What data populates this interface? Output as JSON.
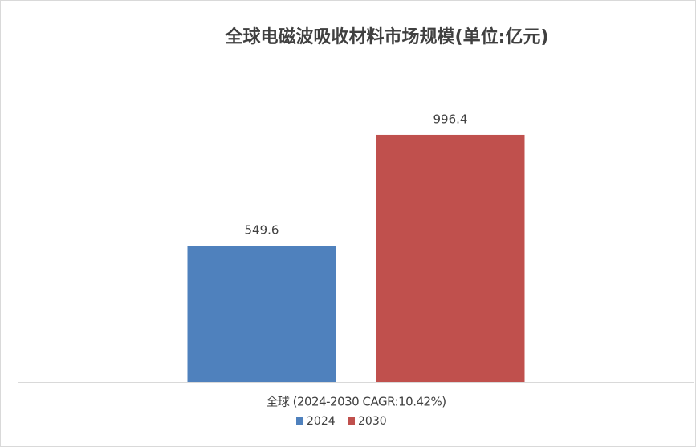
{
  "chart_data": {
    "type": "bar",
    "title": "全球电磁波吸收材料市场规模(单位:亿元)",
    "categories": [
      "全球 (2024-2030 CAGR:10.42%)"
    ],
    "series": [
      {
        "name": "2024",
        "color": "#4f81bd",
        "values": [
          549.6
        ]
      },
      {
        "name": "2030",
        "color": "#c0504d",
        "values": [
          996.4
        ]
      }
    ],
    "ylim": [
      0,
      1200
    ],
    "legend": "bottom",
    "data_labels": true
  }
}
